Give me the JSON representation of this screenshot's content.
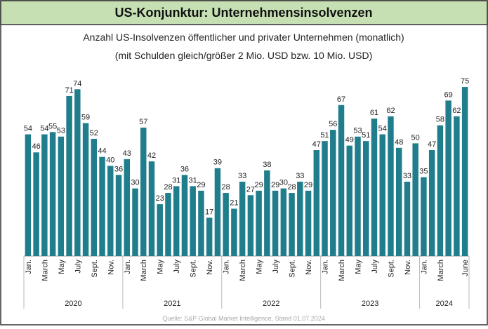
{
  "chart_data": {
    "type": "bar",
    "title": "US-Konjunktur: Unternehmensinsolvenzen",
    "subtitle": [
      "Anzahl US-Insolvenzen öffentlicher und privater Unternehmen (monatlich)",
      "(mit Schulden gleich/größer 2 Mio. USD bzw. 10 Mio. USD)"
    ],
    "source": "Quelle: S&P Global Market Intelligence, Stand 01.07.2024",
    "color": "#1f7d8c",
    "categories": [
      "Jan.",
      null,
      "March",
      null,
      "May",
      null,
      "July",
      null,
      "Sept.",
      null,
      "Nov.",
      null,
      "Jan.",
      null,
      "March",
      null,
      "May",
      null,
      "July",
      null,
      "Sept.",
      null,
      "Nov.",
      null,
      "Jan.",
      null,
      "March",
      null,
      "May",
      null,
      "July",
      null,
      "Sept.",
      null,
      "Nov.",
      null,
      "Jan.",
      null,
      "March",
      null,
      "May",
      null,
      "July",
      null,
      "Sept.",
      null,
      "Nov.",
      null,
      "Jan.",
      null,
      "March",
      null,
      null,
      "June"
    ],
    "years": [
      "2020",
      "2021",
      "2022",
      "2023",
      "2024"
    ],
    "values": [
      54,
      46,
      54,
      55,
      53,
      71,
      74,
      59,
      52,
      44,
      40,
      36,
      43,
      30,
      57,
      42,
      23,
      28,
      31,
      36,
      31,
      29,
      17,
      39,
      28,
      21,
      33,
      27,
      29,
      38,
      29,
      30,
      28,
      33,
      29,
      47,
      51,
      56,
      67,
      49,
      53,
      51,
      61,
      54,
      62,
      48,
      33,
      50,
      35,
      47,
      58,
      69,
      62,
      75
    ],
    "ylim": [
      0,
      80
    ]
  }
}
